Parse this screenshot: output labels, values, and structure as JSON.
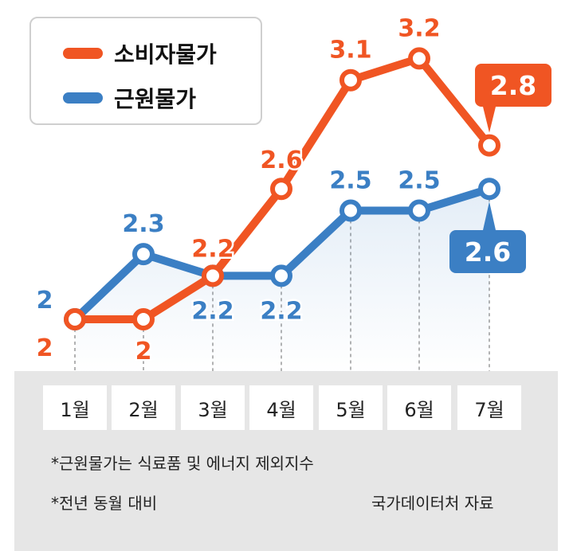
{
  "colors": {
    "cpi": "#f05523",
    "core": "#3b7fc4",
    "panel": "#e6e6e6",
    "text": "#222222"
  },
  "legend": [
    {
      "label": "소비자물가",
      "color": "#f05523"
    },
    {
      "label": "근원물가",
      "color": "#3b7fc4"
    }
  ],
  "chart_data": {
    "type": "line",
    "categories": [
      "1월",
      "2월",
      "3월",
      "4월",
      "5월",
      "6월",
      "7월"
    ],
    "series": [
      {
        "name": "소비자물가",
        "values": [
          2.0,
          2.0,
          2.2,
          2.6,
          3.1,
          3.2,
          2.8
        ],
        "labels": [
          "2",
          "2",
          "2.2",
          "2.6",
          "3.1",
          "3.2",
          "2.8"
        ]
      },
      {
        "name": "근원물가",
        "values": [
          2.0,
          2.3,
          2.2,
          2.2,
          2.5,
          2.5,
          2.6
        ],
        "labels": [
          "2",
          "2.3",
          "2.2",
          "2.2",
          "2.5",
          "2.5",
          "2.6"
        ]
      }
    ],
    "title": "",
    "xlabel": "",
    "ylabel": "",
    "legend_position": "top-left",
    "grid": false
  },
  "notes": {
    "note1": "*근원물가는 식료품 및 에너지 제외지수",
    "note2": "*전년 동월 대비",
    "source": "국가데이터처 자료"
  }
}
